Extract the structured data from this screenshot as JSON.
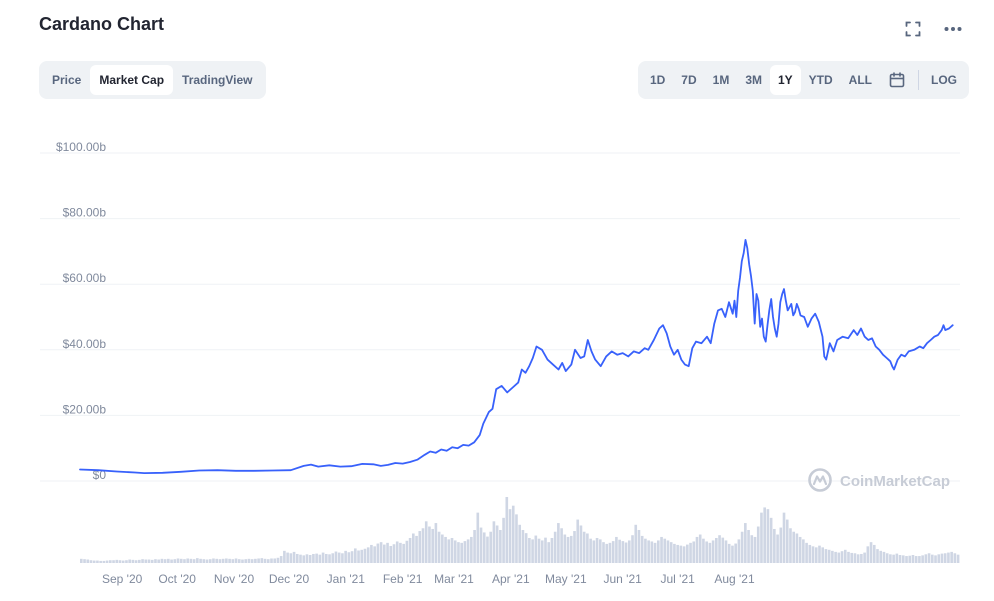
{
  "header": {
    "title": "Cardano Chart",
    "fullscreen_icon": "fullscreen-icon",
    "more_icon": "more-horizontal-icon"
  },
  "tabs": [
    {
      "label": "Price",
      "active": false
    },
    {
      "label": "Market Cap",
      "active": true
    },
    {
      "label": "TradingView",
      "active": false
    }
  ],
  "ranges": [
    {
      "label": "1D",
      "active": false
    },
    {
      "label": "7D",
      "active": false
    },
    {
      "label": "1M",
      "active": false
    },
    {
      "label": "3M",
      "active": false
    },
    {
      "label": "1Y",
      "active": true
    },
    {
      "label": "YTD",
      "active": false
    },
    {
      "label": "ALL",
      "active": false
    }
  ],
  "calendar_icon": "calendar-icon",
  "log_label": "LOG",
  "watermark": "CoinMarketCap",
  "colors": {
    "line": "#3861fb",
    "volume": "#cfd6e4",
    "grid": "#eff2f5",
    "axis_text": "#808a9d"
  },
  "chart_data": {
    "type": "line",
    "title": "Cardano Chart",
    "series": [
      {
        "values": [
          [
            0,
            3.5
          ],
          [
            10,
            3.3
          ],
          [
            20,
            2.9
          ],
          [
            30,
            2.6
          ],
          [
            35,
            2.4
          ],
          [
            45,
            2.5
          ],
          [
            55,
            2.8
          ],
          [
            65,
            3.2
          ],
          [
            75,
            3.3
          ],
          [
            85,
            3.1
          ],
          [
            95,
            3.1
          ],
          [
            105,
            3.2
          ],
          [
            115,
            3.3
          ],
          [
            122,
            4.6
          ],
          [
            126,
            5.0
          ],
          [
            130,
            4.4
          ],
          [
            136,
            4.8
          ],
          [
            142,
            4.4
          ],
          [
            148,
            4.5
          ],
          [
            154,
            5.2
          ],
          [
            160,
            5.1
          ],
          [
            164,
            4.6
          ],
          [
            168,
            4.9
          ],
          [
            172,
            5.5
          ],
          [
            176,
            5.3
          ],
          [
            180,
            5.8
          ],
          [
            184,
            6.5
          ],
          [
            188,
            8.0
          ],
          [
            191,
            9.0
          ],
          [
            194,
            8.6
          ],
          [
            197,
            9.6
          ],
          [
            200,
            9.2
          ],
          [
            203,
            10.3
          ],
          [
            206,
            10.0
          ],
          [
            209,
            11.0
          ],
          [
            212,
            10.8
          ],
          [
            215,
            11.8
          ],
          [
            218,
            14.0
          ],
          [
            220,
            17.5
          ],
          [
            223,
            21.0
          ],
          [
            225,
            22.0
          ],
          [
            227,
            28.0
          ],
          [
            230,
            29.0
          ],
          [
            233,
            27.0
          ],
          [
            236,
            28.5
          ],
          [
            239,
            30.0
          ],
          [
            241,
            34.0
          ],
          [
            243,
            33.0
          ],
          [
            245,
            35.0
          ],
          [
            247,
            37.5
          ],
          [
            249,
            41.0
          ],
          [
            252,
            40.0
          ],
          [
            255,
            37.0
          ],
          [
            258,
            35.5
          ],
          [
            261,
            34.0
          ],
          [
            263,
            36.0
          ],
          [
            265,
            33.5
          ],
          [
            268,
            35.5
          ],
          [
            270,
            40.0
          ],
          [
            273,
            37.5
          ],
          [
            275,
            38.0
          ],
          [
            277,
            43.0
          ],
          [
            279,
            39.5
          ],
          [
            281,
            37.0
          ],
          [
            284,
            35.0
          ],
          [
            287,
            38.0
          ],
          [
            290,
            39.5
          ],
          [
            293,
            38.5
          ],
          [
            296,
            39.0
          ],
          [
            299,
            38.0
          ],
          [
            302,
            39.5
          ],
          [
            305,
            39.0
          ],
          [
            308,
            40.5
          ],
          [
            310,
            40.0
          ],
          [
            313,
            43.0
          ],
          [
            316,
            46.5
          ],
          [
            318,
            47.5
          ],
          [
            320,
            45.0
          ],
          [
            322,
            41.0
          ],
          [
            324,
            38.5
          ],
          [
            326,
            40.0
          ],
          [
            328,
            37.0
          ],
          [
            330,
            35.5
          ],
          [
            332,
            35.0
          ],
          [
            334,
            40.5
          ],
          [
            336,
            42.5
          ],
          [
            339,
            42.0
          ],
          [
            342,
            44.0
          ],
          [
            344,
            42.0
          ],
          [
            346,
            48.0
          ],
          [
            348,
            52.0
          ],
          [
            350,
            52.5
          ],
          [
            352,
            50.0
          ],
          [
            354,
            54.5
          ],
          [
            356,
            51.0
          ],
          [
            357,
            55.0
          ],
          [
            358,
            50.0
          ],
          [
            359,
            58.0
          ],
          [
            360,
            62.0
          ],
          [
            361,
            67.0
          ],
          [
            362,
            69.5
          ],
          [
            363,
            73.5
          ],
          [
            364,
            71.0
          ],
          [
            365,
            66.0
          ],
          [
            366,
            62.5
          ],
          [
            367,
            58.0
          ],
          [
            368,
            48.0
          ],
          [
            369,
            57.0
          ],
          [
            370,
            55.0
          ],
          [
            371,
            47.0
          ],
          [
            372,
            49.5
          ],
          [
            373,
            44.0
          ],
          [
            374,
            42.5
          ],
          [
            375,
            47.5
          ],
          [
            376,
            52.0
          ],
          [
            377,
            55.5
          ],
          [
            378,
            50.0
          ],
          [
            379,
            46.5
          ],
          [
            380,
            44.0
          ],
          [
            381,
            48.0
          ],
          [
            382,
            54.5
          ],
          [
            383,
            57.0
          ],
          [
            384,
            58.5
          ],
          [
            385,
            55.0
          ],
          [
            386,
            52.0
          ],
          [
            387,
            53.0
          ],
          [
            388,
            54.0
          ],
          [
            389,
            50.5
          ],
          [
            390,
            51.5
          ],
          [
            391,
            54.0
          ],
          [
            392,
            52.5
          ],
          [
            393,
            50.5
          ],
          [
            395,
            50.0
          ],
          [
            397,
            47.0
          ],
          [
            399,
            49.5
          ],
          [
            401,
            51.0
          ],
          [
            403,
            48.5
          ],
          [
            405,
            44.0
          ],
          [
            406,
            38.0
          ],
          [
            407,
            37.0
          ],
          [
            409,
            42.0
          ],
          [
            411,
            39.5
          ],
          [
            413,
            43.0
          ],
          [
            416,
            44.0
          ],
          [
            419,
            43.5
          ],
          [
            422,
            46.0
          ],
          [
            424,
            44.5
          ],
          [
            426,
            46.5
          ],
          [
            428,
            44.0
          ],
          [
            430,
            43.0
          ],
          [
            432,
            43.5
          ],
          [
            434,
            41.0
          ],
          [
            436,
            40.0
          ],
          [
            438,
            38.5
          ],
          [
            440,
            37.5
          ],
          [
            442,
            36.5
          ],
          [
            443,
            35.0
          ],
          [
            444,
            34.0
          ],
          [
            446,
            37.0
          ],
          [
            448,
            38.5
          ],
          [
            450,
            38.0
          ],
          [
            452,
            39.5
          ],
          [
            455,
            40.0
          ],
          [
            458,
            41.0
          ],
          [
            460,
            40.5
          ],
          [
            462,
            42.0
          ],
          [
            464,
            43.0
          ],
          [
            466,
            44.0
          ],
          [
            468,
            44.5
          ],
          [
            470,
            46.0
          ],
          [
            471,
            47.5
          ],
          [
            472,
            46.0
          ],
          [
            474,
            46.5
          ],
          [
            476,
            47.5
          ]
        ]
      },
      {
        "name": "Volume",
        "values": [
          1.2,
          1.1,
          1.0,
          0.8,
          0.7,
          0.7,
          0.6,
          0.6,
          0.7,
          0.8,
          0.8,
          0.9,
          0.8,
          0.7,
          0.8,
          1.0,
          0.9,
          0.8,
          0.9,
          1.1,
          1.0,
          1.0,
          0.9,
          1.1,
          1.0,
          1.2,
          1.1,
          1.2,
          1.0,
          1.1,
          1.3,
          1.2,
          1.1,
          1.3,
          1.2,
          1.1,
          1.4,
          1.2,
          1.1,
          1.0,
          1.1,
          1.3,
          1.2,
          1.1,
          1.2,
          1.3,
          1.2,
          1.1,
          1.3,
          1.1,
          1.0,
          1.1,
          1.2,
          1.1,
          1.2,
          1.3,
          1.4,
          1.2,
          1.1,
          1.3,
          1.3,
          1.5,
          2.0,
          3.5,
          3.0,
          2.8,
          3.2,
          2.6,
          2.4,
          2.2,
          2.5,
          2.3,
          2.6,
          2.7,
          2.4,
          3.0,
          2.6,
          2.5,
          2.8,
          3.3,
          3.0,
          2.8,
          3.5,
          3.1,
          3.4,
          4.2,
          3.6,
          3.8,
          4.1,
          4.5,
          5.2,
          4.8,
          5.6,
          6.0,
          5.3,
          5.8,
          4.9,
          5.4,
          6.2,
          5.8,
          5.5,
          6.4,
          7.2,
          8.5,
          7.8,
          9.2,
          10.0,
          12.0,
          10.5,
          9.8,
          11.5,
          9.0,
          8.2,
          7.5,
          6.8,
          7.2,
          6.5,
          6.0,
          5.8,
          6.3,
          6.8,
          7.5,
          9.5,
          14.5,
          10.2,
          8.8,
          7.6,
          9.0,
          12.0,
          10.8,
          9.5,
          13.0,
          19.0,
          15.5,
          16.5,
          14.0,
          11.0,
          9.5,
          8.6,
          7.2,
          6.8,
          7.9,
          7.0,
          6.5,
          7.3,
          6.0,
          7.2,
          9.0,
          11.5,
          10.0,
          8.2,
          7.5,
          7.8,
          9.2,
          12.5,
          10.8,
          9.0,
          8.5,
          7.0,
          6.5,
          7.2,
          6.8,
          6.0,
          5.5,
          5.8,
          6.3,
          7.5,
          6.7,
          6.3,
          5.9,
          6.5,
          8.0,
          11.0,
          9.5,
          7.8,
          7.0,
          6.5,
          6.2,
          5.8,
          6.5,
          7.5,
          7.0,
          6.5,
          6.0,
          5.5,
          5.2,
          5.0,
          4.8,
          5.3,
          5.8,
          6.2,
          7.5,
          8.2,
          7.0,
          6.2,
          5.8,
          6.5,
          7.2,
          8.0,
          7.3,
          6.5,
          5.5,
          5.0,
          5.6,
          6.8,
          9.0,
          11.5,
          9.5,
          8.0,
          7.5,
          10.5,
          14.5,
          16.0,
          15.5,
          13.0,
          9.8,
          8.2,
          10.2,
          14.5,
          12.5,
          10.0,
          9.0,
          8.5,
          7.5,
          6.8,
          5.8,
          5.2,
          4.8,
          4.5,
          5.0,
          4.5,
          4.0,
          3.8,
          3.5,
          3.2,
          3.0,
          3.4,
          3.8,
          3.2,
          2.9,
          2.8,
          2.5,
          2.6,
          3.0,
          4.8,
          6.0,
          5.2,
          4.0,
          3.5,
          3.2,
          2.8,
          2.5,
          2.4,
          2.7,
          2.3,
          2.2,
          2.0,
          2.1,
          2.3,
          2.0,
          2.0,
          2.2,
          2.5,
          2.8,
          2.4,
          2.2,
          2.5,
          2.7,
          2.8,
          3.0,
          3.2,
          2.8,
          2.4
        ]
      }
    ],
    "x_ticks": [
      "Sep '20",
      "Oct '20",
      "Nov '20",
      "Dec '20",
      "Jan '21",
      "Feb '21",
      "Mar '21",
      "Apr '21",
      "May '21",
      "Jun '21",
      "Jul '21",
      "Aug '21"
    ],
    "y_ticks": [
      "$0",
      "$20.00b",
      "$40.00b",
      "$60.00b",
      "$80.00b",
      "$100.00b"
    ],
    "ylim": [
      0,
      100
    ],
    "grid": true,
    "legend": "none"
  }
}
